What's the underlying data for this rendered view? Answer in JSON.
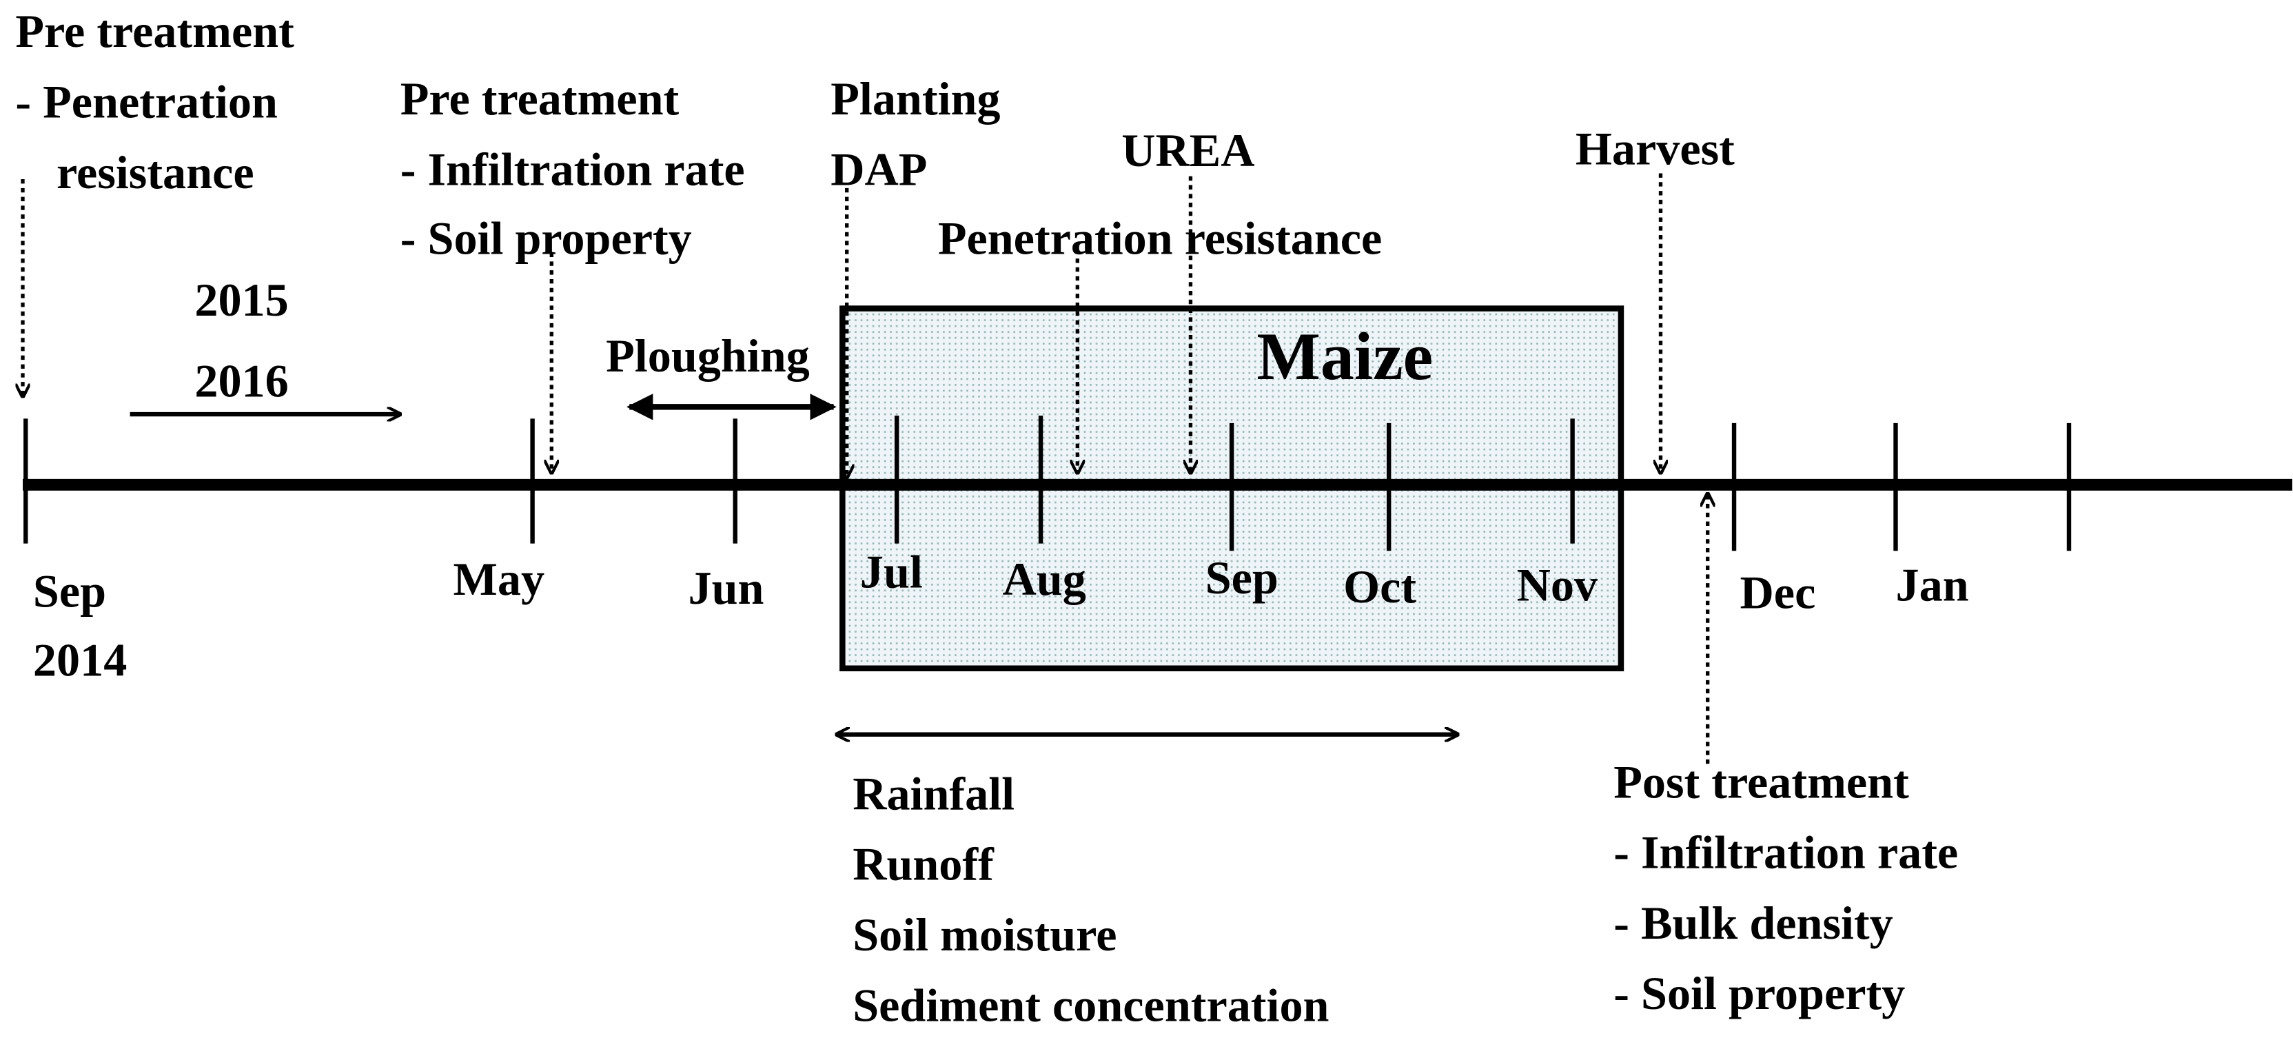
{
  "pre_treatment_start": {
    "title": "Pre treatment",
    "lines": [
      "- Penetration",
      "resistance"
    ]
  },
  "start": [
    "Sep",
    "2014"
  ],
  "years": [
    "2015",
    "2016"
  ],
  "pre_treatment_may": {
    "title": "Pre treatment",
    "lines": [
      "- Infiltration rate",
      "- Soil property"
    ]
  },
  "planting": [
    "Planting",
    "DAP"
  ],
  "urea": "UREA",
  "penetration": "Penetration resistance",
  "harvest": "Harvest",
  "ploughing": "Ploughing",
  "crop": "Maize",
  "months": [
    "May",
    "Jun",
    "Jul",
    "Aug",
    "Sep",
    "Oct",
    "Nov",
    "Dec",
    "Jan"
  ],
  "measurements": [
    "Rainfall",
    "Runoff",
    "Soil moisture",
    "Sediment concentration"
  ],
  "post_treatment": {
    "title": "Post treatment",
    "lines": [
      "- Infiltration rate",
      "- Bulk density",
      "- Soil property"
    ]
  }
}
